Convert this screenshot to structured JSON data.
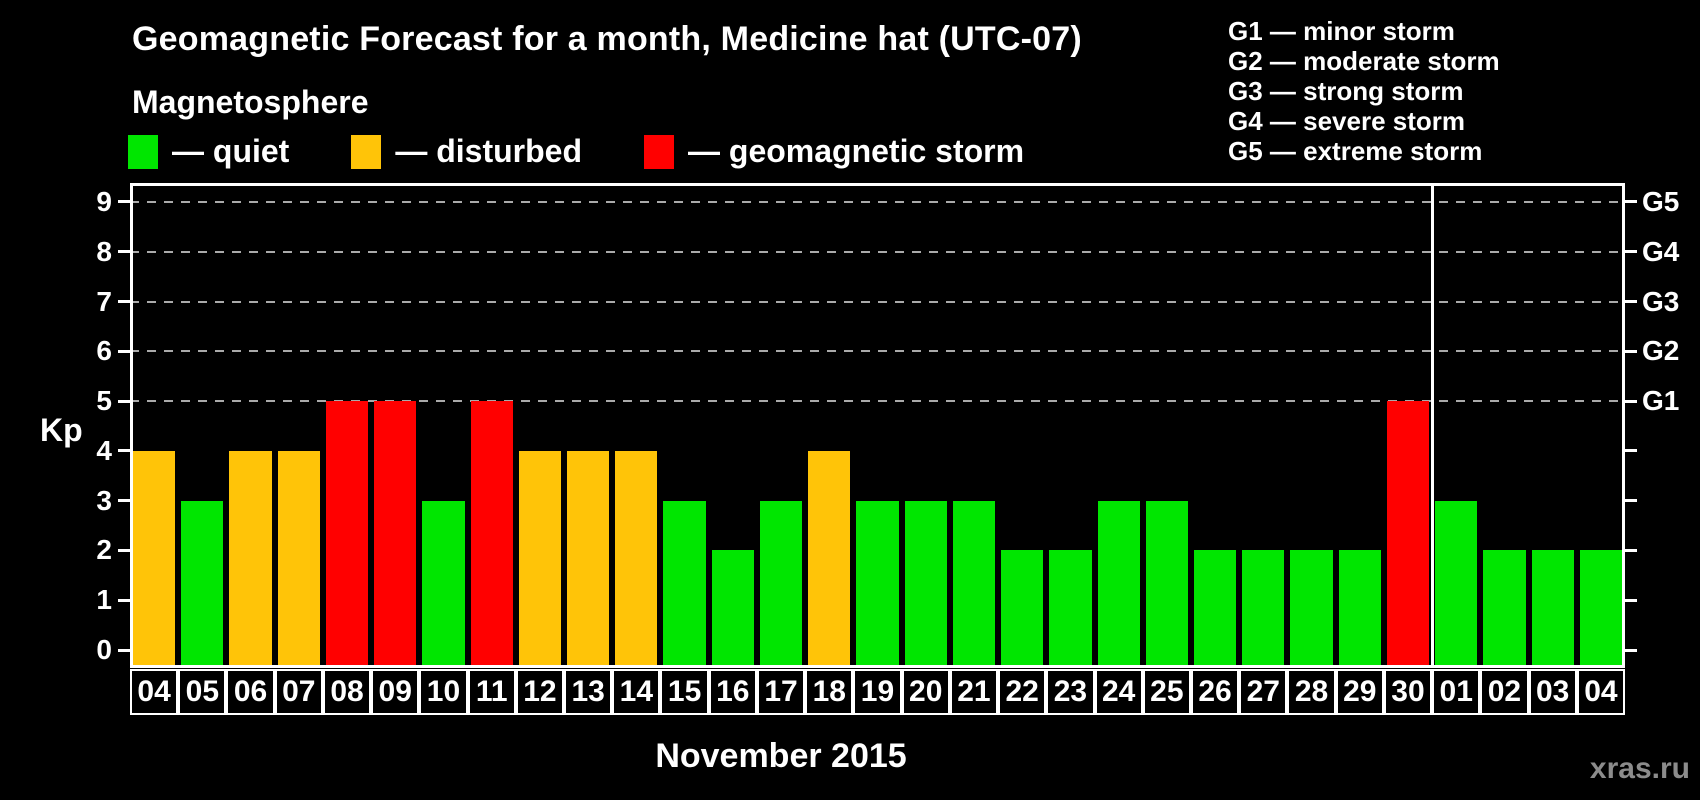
{
  "title": "Geomagnetic Forecast for a month, Medicine hat (UTC-07)",
  "watermark": "xras.ru",
  "magnetosphere_legend": {
    "heading": "Magnetosphere",
    "items": [
      {
        "name": "quiet",
        "label": "— quiet",
        "color": "#00e600"
      },
      {
        "name": "disturbed",
        "label": "— disturbed",
        "color": "#ffc408"
      },
      {
        "name": "storm",
        "label": "— geomagnetic storm",
        "color": "#ff0000"
      }
    ]
  },
  "g_scale_legend": [
    "G1 — minor storm",
    "G2 — moderate storm",
    "G3 — strong storm",
    "G4 — severe storm",
    "G5 — extreme storm"
  ],
  "chart_data": {
    "type": "bar",
    "title": "Geomagnetic Forecast for a month, Medicine hat (UTC-07)",
    "xlabel": "November 2015",
    "ylabel": "Kp",
    "ylim": [
      0,
      9
    ],
    "yticks": [
      0,
      1,
      2,
      3,
      4,
      5,
      6,
      7,
      8,
      9
    ],
    "gridlines_at": [
      5,
      6,
      7,
      8,
      9
    ],
    "grid": "dashed, only at storm levels 5-9",
    "legend_position": "top",
    "right_axis": [
      {
        "label": "G1",
        "value": 5
      },
      {
        "label": "G2",
        "value": 6
      },
      {
        "label": "G3",
        "value": 7
      },
      {
        "label": "G4",
        "value": 8
      },
      {
        "label": "G5",
        "value": 9
      }
    ],
    "month_separator_after": 27,
    "colors": {
      "quiet": "#00e600",
      "disturbed": "#ffc408",
      "storm": "#ff0000"
    },
    "bars": [
      {
        "day": "04",
        "kp": 4,
        "status": "disturbed"
      },
      {
        "day": "05",
        "kp": 3,
        "status": "quiet"
      },
      {
        "day": "06",
        "kp": 4,
        "status": "disturbed"
      },
      {
        "day": "07",
        "kp": 4,
        "status": "disturbed"
      },
      {
        "day": "08",
        "kp": 5,
        "status": "storm"
      },
      {
        "day": "09",
        "kp": 5,
        "status": "storm"
      },
      {
        "day": "10",
        "kp": 3,
        "status": "quiet"
      },
      {
        "day": "11",
        "kp": 5,
        "status": "storm"
      },
      {
        "day": "12",
        "kp": 4,
        "status": "disturbed"
      },
      {
        "day": "13",
        "kp": 4,
        "status": "disturbed"
      },
      {
        "day": "14",
        "kp": 4,
        "status": "disturbed"
      },
      {
        "day": "15",
        "kp": 3,
        "status": "quiet"
      },
      {
        "day": "16",
        "kp": 2,
        "status": "quiet"
      },
      {
        "day": "17",
        "kp": 3,
        "status": "quiet"
      },
      {
        "day": "18",
        "kp": 4,
        "status": "disturbed"
      },
      {
        "day": "19",
        "kp": 3,
        "status": "quiet"
      },
      {
        "day": "20",
        "kp": 3,
        "status": "quiet"
      },
      {
        "day": "21",
        "kp": 3,
        "status": "quiet"
      },
      {
        "day": "22",
        "kp": 2,
        "status": "quiet"
      },
      {
        "day": "23",
        "kp": 2,
        "status": "quiet"
      },
      {
        "day": "24",
        "kp": 3,
        "status": "quiet"
      },
      {
        "day": "25",
        "kp": 3,
        "status": "quiet"
      },
      {
        "day": "26",
        "kp": 2,
        "status": "quiet"
      },
      {
        "day": "27",
        "kp": 2,
        "status": "quiet"
      },
      {
        "day": "28",
        "kp": 2,
        "status": "quiet"
      },
      {
        "day": "29",
        "kp": 2,
        "status": "quiet"
      },
      {
        "day": "30",
        "kp": 5,
        "status": "storm"
      },
      {
        "day": "01",
        "kp": 3,
        "status": "quiet"
      },
      {
        "day": "02",
        "kp": 2,
        "status": "quiet"
      },
      {
        "day": "03",
        "kp": 2,
        "status": "quiet"
      },
      {
        "day": "04",
        "kp": 2,
        "status": "quiet"
      }
    ]
  }
}
